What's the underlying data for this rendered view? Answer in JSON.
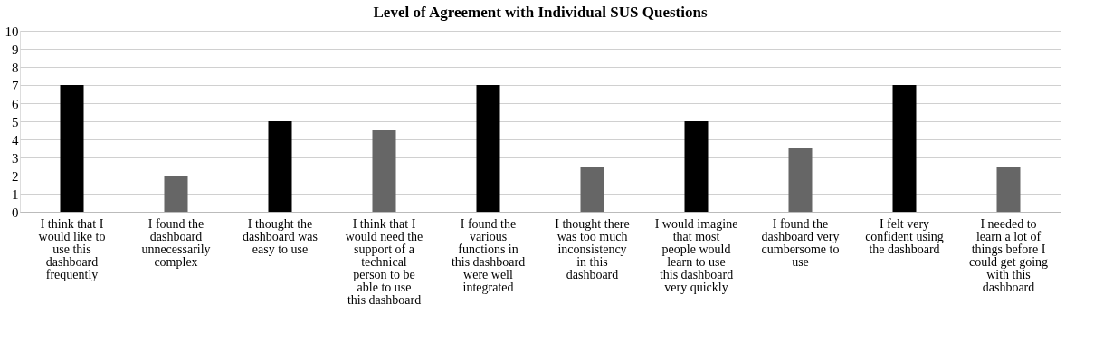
{
  "chart_data": {
    "type": "bar",
    "title": "Level of Agreement with Individual SUS Questions",
    "categories": [
      "I think that I would like to use this dashboard frequently",
      "I found the dashboard unnecessarily complex",
      "I thought the dashboard was easy to use",
      "I think that I would need the support of a technical person to be able to use this dashboard",
      "I found the various functions in this dashboard were well integrated",
      "I thought there was too much inconsistency in this dashboard",
      "I would imagine that most people would learn to use this dashboard very quickly",
      "I found the dashboard very cumbersome to use",
      "I felt very confident using the dashboard",
      "I needed to learn a lot of things before I could get going with this dashboard"
    ],
    "values": [
      7,
      2,
      5,
      4.5,
      7,
      2.5,
      5,
      3.5,
      7,
      2.5
    ],
    "colors": [
      "#000000",
      "#666666",
      "#000000",
      "#666666",
      "#000000",
      "#666666",
      "#000000",
      "#666666",
      "#000000",
      "#666666"
    ],
    "ylim": [
      0,
      10
    ],
    "yticks": [
      0,
      1,
      2,
      3,
      4,
      5,
      6,
      7,
      8,
      9,
      10
    ],
    "grid": "y",
    "legend": false
  }
}
